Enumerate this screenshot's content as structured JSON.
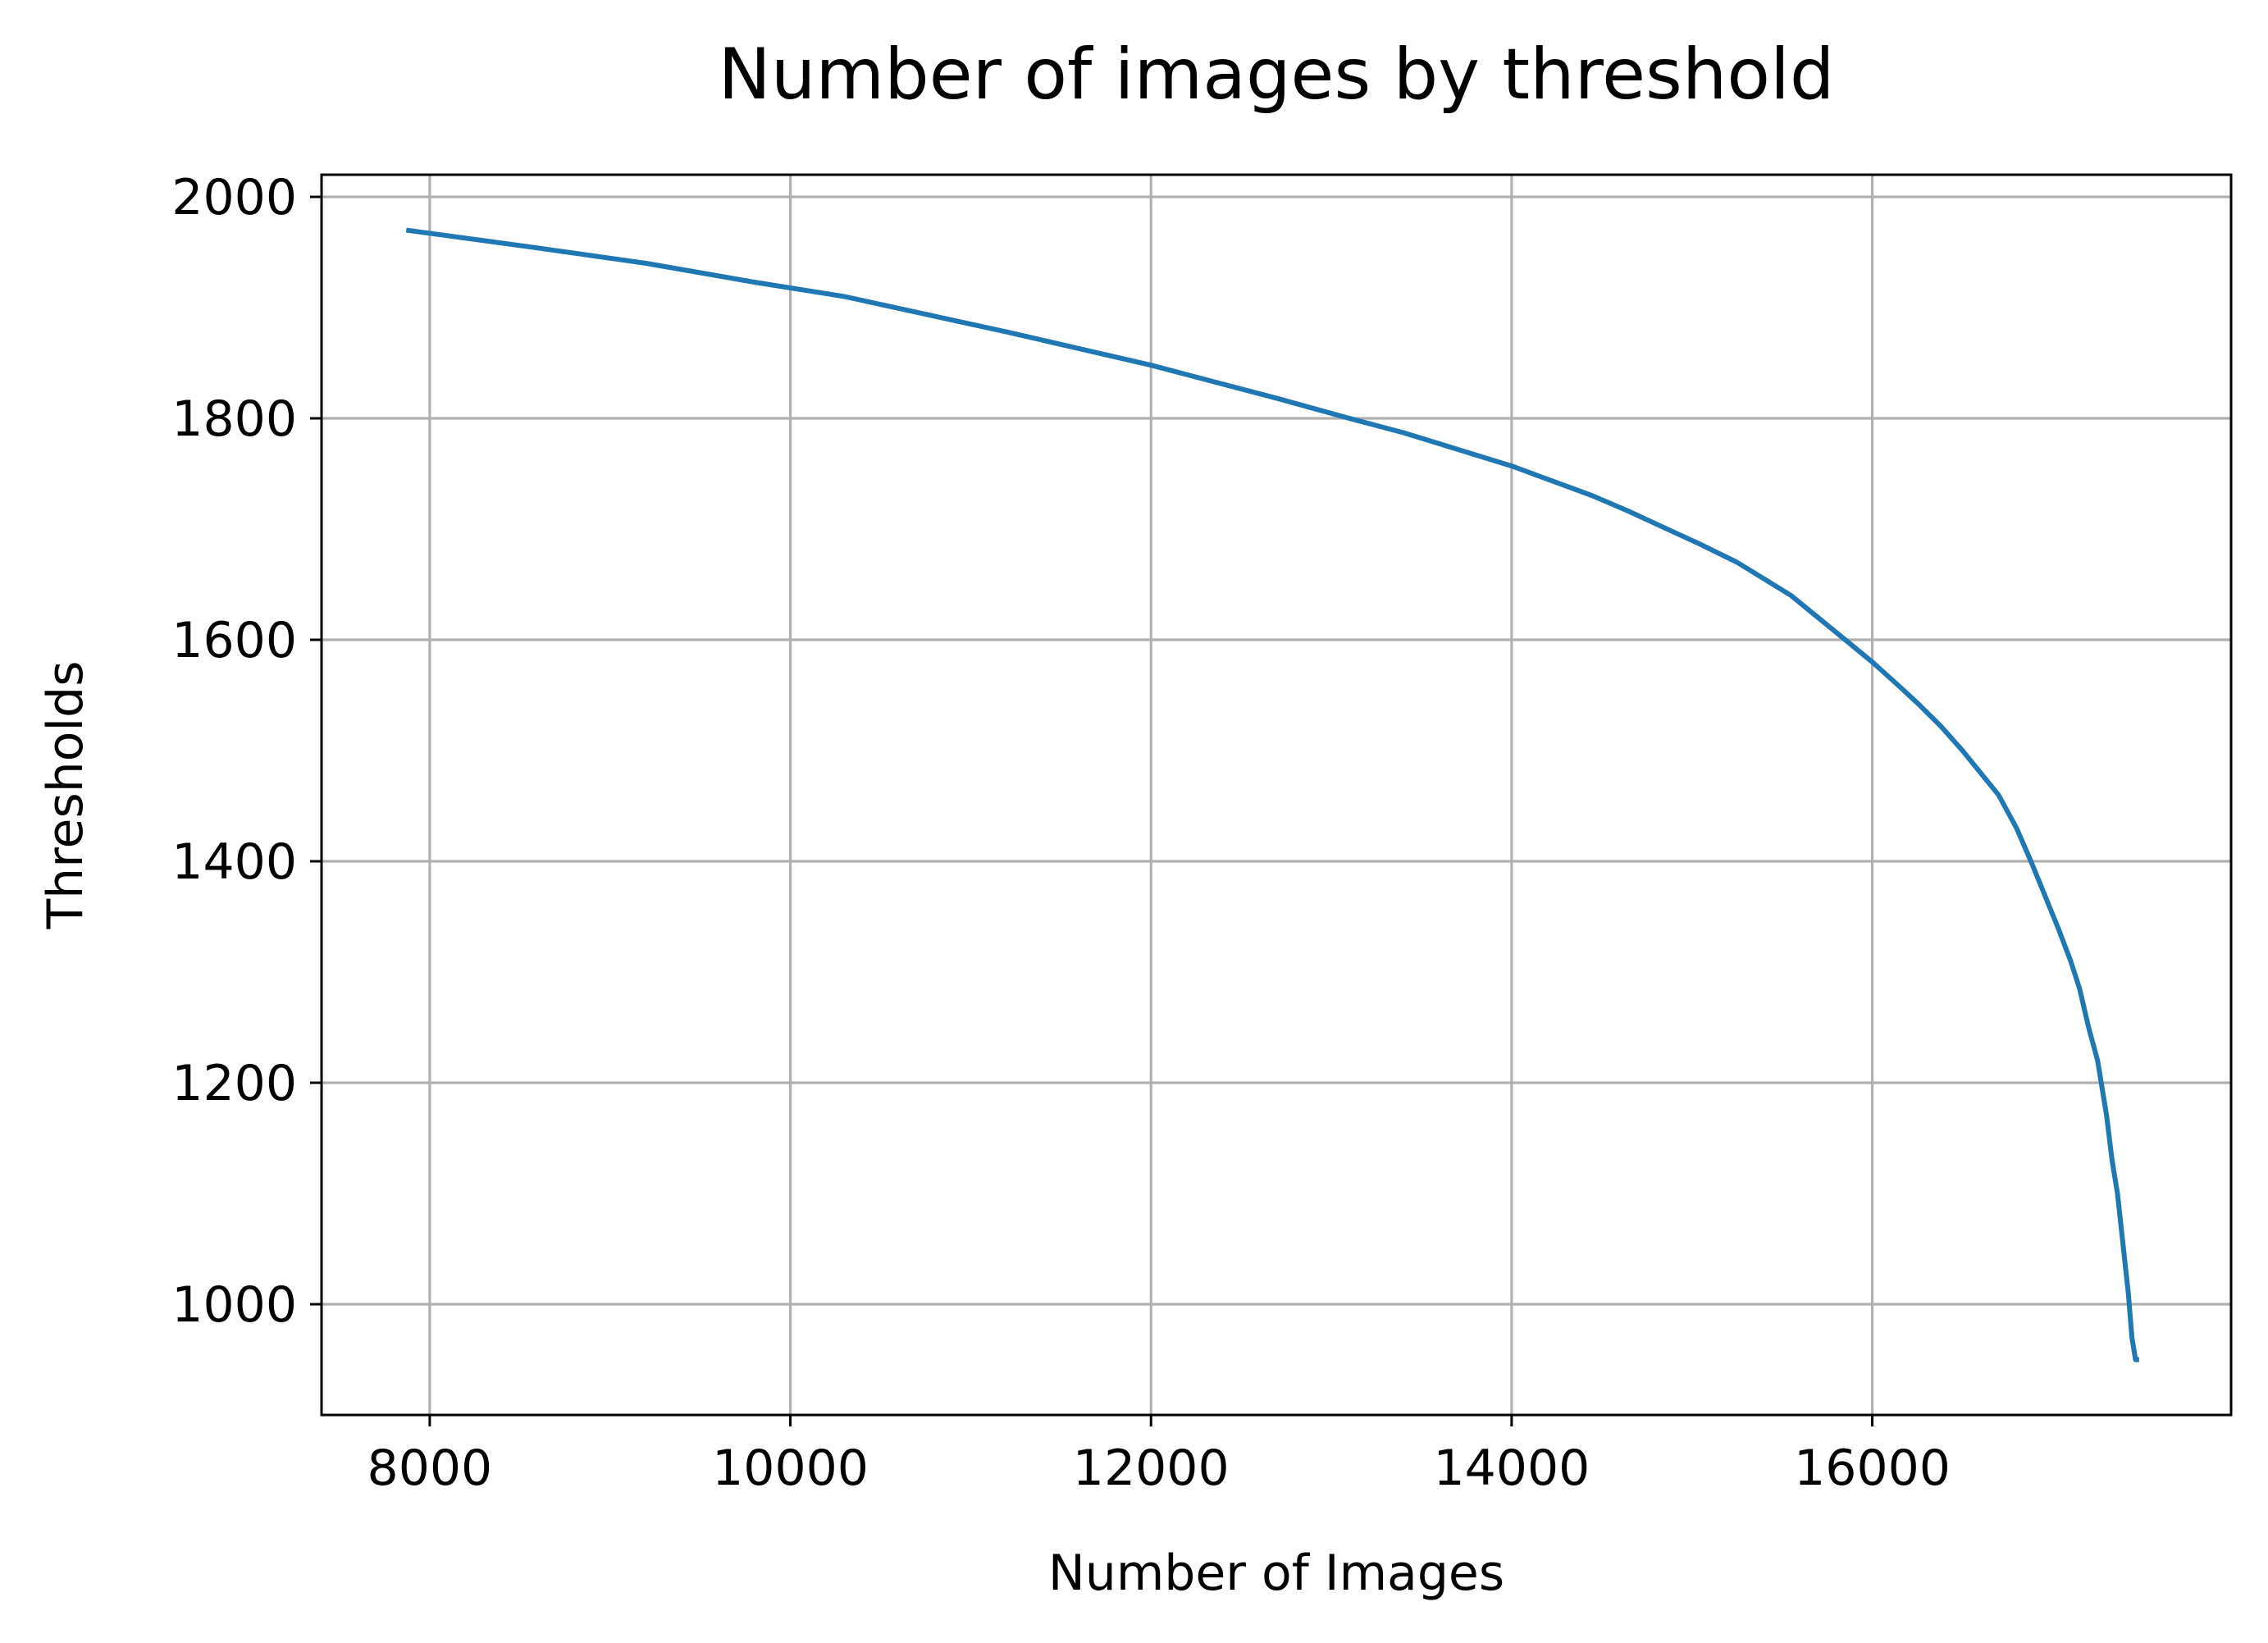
{
  "chart_data": {
    "type": "line",
    "title": "Number of images by threshold",
    "xlabel": "Number of Images",
    "ylabel": "Thresholds",
    "xlim": [
      7400,
      17990
    ],
    "ylim": [
      900,
      2020
    ],
    "xticks": [
      8000,
      10000,
      12000,
      14000,
      16000
    ],
    "yticks": [
      1000,
      1200,
      1400,
      1600,
      1800,
      2000
    ],
    "grid": true,
    "line_color": "#1f77b4",
    "grid_color": "#b0b0b0",
    "series": [
      {
        "x": [
          7870,
          8550,
          9200,
          9800,
          10300,
          10750,
          11200,
          11600,
          12000,
          12350,
          12700,
          13100,
          13400,
          13700,
          14000,
          14200,
          14450,
          14650,
          14850,
          15050,
          15250,
          15400,
          15550,
          15700,
          15850,
          16000,
          16150,
          16250,
          16380,
          16500,
          16600,
          16700,
          16800,
          16880,
          16950,
          17030,
          17100,
          17150,
          17200,
          17250,
          17300,
          17330,
          17360,
          17380,
          17400,
          17420,
          17440,
          17460,
          17480
        ],
        "y": [
          1970,
          1955,
          1940,
          1923,
          1910,
          1894,
          1878,
          1863,
          1848,
          1833,
          1818,
          1800,
          1787,
          1772,
          1757,
          1745,
          1730,
          1716,
          1701,
          1686,
          1670,
          1655,
          1640,
          1620,
          1600,
          1580,
          1558,
          1543,
          1522,
          1500,
          1480,
          1460,
          1430,
          1400,
          1372,
          1340,
          1310,
          1285,
          1250,
          1220,
          1170,
          1130,
          1100,
          1070,
          1040,
          1010,
          970,
          950,
          950
        ]
      }
    ]
  }
}
